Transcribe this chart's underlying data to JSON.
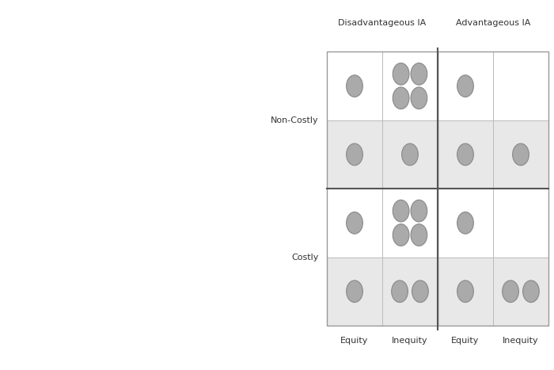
{
  "background_color": "#ffffff",
  "fig_width": 7.0,
  "fig_height": 4.67,
  "diagram": {
    "title_disadv": "Disadvantageous IA",
    "title_adv": "Advantageous IA",
    "row_labels": [
      "Non-Costly",
      "Costly"
    ],
    "bottom_labels": [
      "Equity",
      "Inequity",
      "Equity",
      "Inequity"
    ],
    "box_bg_top": "#ffffff",
    "box_bg_bottom": "#e8e8e8",
    "circle_color": "#aaaaaa",
    "circle_edge": "#888888",
    "cell_data": [
      [
        [
          1,
          1
        ],
        [
          4,
          1
        ],
        [
          1,
          1
        ],
        [
          0,
          1
        ]
      ],
      [
        [
          1,
          1
        ],
        [
          4,
          2
        ],
        [
          1,
          1
        ],
        [
          0,
          2
        ]
      ]
    ],
    "font_size_title": 8.0,
    "font_size_label": 8.0,
    "font_size_bottom": 8.0
  }
}
